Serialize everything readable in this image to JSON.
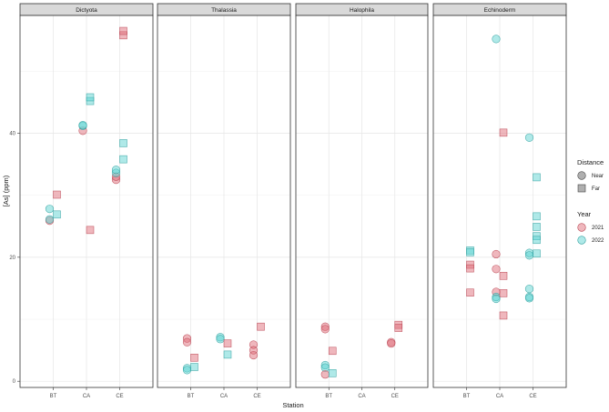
{
  "chart_data": {
    "type": "scatter",
    "xlabel": "Station",
    "ylabel": "[As] (ppm)",
    "categories": [
      "BT",
      "CA",
      "CE"
    ],
    "ylim": [
      -1,
      59
    ],
    "yticks": [
      0,
      20,
      40
    ],
    "grid": true,
    "legend_placement": "right",
    "legends": [
      {
        "title": "Distance",
        "items": [
          {
            "label": "Near",
            "shape": "circle"
          },
          {
            "label": "Far",
            "shape": "square"
          }
        ]
      },
      {
        "title": "Year",
        "items": [
          {
            "label": "2021",
            "color": "#e0707c"
          },
          {
            "label": "2022",
            "color": "#5fd4d2"
          }
        ]
      }
    ],
    "colors": {
      "2021": "#e0707c",
      "2022": "#5fd4d2",
      "2021_stroke": "#b8404d",
      "2022_stroke": "#2a9e9c",
      "near_dark": "#555555"
    },
    "panels": [
      {
        "name": "Dictyota",
        "points": [
          {
            "x": "BT",
            "y": 25.9,
            "year": "2021",
            "dist": "Near"
          },
          {
            "x": "BT",
            "y": 26.1,
            "year": "2022",
            "dist": "Near"
          },
          {
            "x": "BT",
            "y": 27.8,
            "year": "2022",
            "dist": "Near"
          },
          {
            "x": "BT",
            "y": 30.1,
            "year": "2021",
            "dist": "Far"
          },
          {
            "x": "BT",
            "y": 26.9,
            "year": "2022",
            "dist": "Far"
          },
          {
            "x": "CA",
            "y": 40.4,
            "year": "2021",
            "dist": "Near"
          },
          {
            "x": "CA",
            "y": 41.2,
            "year": "2022",
            "dist": "Near"
          },
          {
            "x": "CA",
            "y": 41.3,
            "year": "2022",
            "dist": "Near"
          },
          {
            "x": "CA",
            "y": 45.2,
            "year": "2022",
            "dist": "Far"
          },
          {
            "x": "CA",
            "y": 45.8,
            "year": "2022",
            "dist": "Far"
          },
          {
            "x": "CA",
            "y": 24.4,
            "year": "2021",
            "dist": "Far"
          },
          {
            "x": "CE",
            "y": 32.5,
            "year": "2021",
            "dist": "Near"
          },
          {
            "x": "CE",
            "y": 33.0,
            "year": "2021",
            "dist": "Near"
          },
          {
            "x": "CE",
            "y": 33.6,
            "year": "2022",
            "dist": "Near"
          },
          {
            "x": "CE",
            "y": 34.1,
            "year": "2022",
            "dist": "Near"
          },
          {
            "x": "CE",
            "y": 55.8,
            "year": "2021",
            "dist": "Far"
          },
          {
            "x": "CE",
            "y": 56.5,
            "year": "2021",
            "dist": "Far"
          },
          {
            "x": "CE",
            "y": 38.4,
            "year": "2022",
            "dist": "Far"
          },
          {
            "x": "CE",
            "y": 35.8,
            "year": "2022",
            "dist": "Far"
          }
        ]
      },
      {
        "name": "Thalassia",
        "points": [
          {
            "x": "BT",
            "y": 6.9,
            "year": "2021",
            "dist": "Near"
          },
          {
            "x": "BT",
            "y": 6.3,
            "year": "2021",
            "dist": "Near"
          },
          {
            "x": "BT",
            "y": 2.1,
            "year": "2022",
            "dist": "Near"
          },
          {
            "x": "BT",
            "y": 1.8,
            "year": "2022",
            "dist": "Near"
          },
          {
            "x": "BT",
            "y": 3.8,
            "year": "2021",
            "dist": "Far"
          },
          {
            "x": "BT",
            "y": 2.3,
            "year": "2022",
            "dist": "Far"
          },
          {
            "x": "CA",
            "y": 7.1,
            "year": "2022",
            "dist": "Near"
          },
          {
            "x": "CA",
            "y": 6.8,
            "year": "2022",
            "dist": "Near"
          },
          {
            "x": "CA",
            "y": 6.1,
            "year": "2021",
            "dist": "Far"
          },
          {
            "x": "CA",
            "y": 4.3,
            "year": "2022",
            "dist": "Far"
          },
          {
            "x": "CE",
            "y": 5.9,
            "year": "2021",
            "dist": "Near"
          },
          {
            "x": "CE",
            "y": 5.0,
            "year": "2021",
            "dist": "Near"
          },
          {
            "x": "CE",
            "y": 4.2,
            "year": "2021",
            "dist": "Near"
          },
          {
            "x": "CE",
            "y": 8.8,
            "year": "2021",
            "dist": "Far"
          }
        ]
      },
      {
        "name": "Halophila",
        "points": [
          {
            "x": "BT",
            "y": 8.8,
            "year": "2021",
            "dist": "Near"
          },
          {
            "x": "BT",
            "y": 8.4,
            "year": "2021",
            "dist": "Near"
          },
          {
            "x": "BT",
            "y": 2.6,
            "year": "2022",
            "dist": "Near"
          },
          {
            "x": "BT",
            "y": 2.2,
            "year": "2022",
            "dist": "Near"
          },
          {
            "x": "BT",
            "y": 1.1,
            "year": "2021",
            "dist": "Near"
          },
          {
            "x": "BT",
            "y": 4.9,
            "year": "2021",
            "dist": "Far"
          },
          {
            "x": "BT",
            "y": 1.3,
            "year": "2022",
            "dist": "Far"
          },
          {
            "x": "CE",
            "y": 6.3,
            "year": "2021",
            "dist": "Near"
          },
          {
            "x": "CE",
            "y": 6.1,
            "year": "2021",
            "dist": "Near"
          },
          {
            "x": "CE",
            "y": 9.1,
            "year": "2021",
            "dist": "Far"
          },
          {
            "x": "CE",
            "y": 8.6,
            "year": "2021",
            "dist": "Far"
          }
        ]
      },
      {
        "name": "Echinoderm",
        "points": [
          {
            "x": "BT",
            "y": 21.1,
            "year": "2022",
            "dist": "Far"
          },
          {
            "x": "BT",
            "y": 20.8,
            "year": "2022",
            "dist": "Far"
          },
          {
            "x": "BT",
            "y": 18.8,
            "year": "2021",
            "dist": "Far"
          },
          {
            "x": "BT",
            "y": 18.2,
            "year": "2021",
            "dist": "Far"
          },
          {
            "x": "BT",
            "y": 14.3,
            "year": "2021",
            "dist": "Far"
          },
          {
            "x": "CA",
            "y": 55.2,
            "year": "2022",
            "dist": "Near"
          },
          {
            "x": "CA",
            "y": 20.5,
            "year": "2021",
            "dist": "Near"
          },
          {
            "x": "CA",
            "y": 18.1,
            "year": "2021",
            "dist": "Near"
          },
          {
            "x": "CA",
            "y": 14.4,
            "year": "2021",
            "dist": "Near"
          },
          {
            "x": "CA",
            "y": 13.6,
            "year": "2022",
            "dist": "Near"
          },
          {
            "x": "CA",
            "y": 13.3,
            "year": "2022",
            "dist": "Near"
          },
          {
            "x": "CA",
            "y": 40.1,
            "year": "2021",
            "dist": "Far"
          },
          {
            "x": "CA",
            "y": 17.0,
            "year": "2021",
            "dist": "Far"
          },
          {
            "x": "CA",
            "y": 14.2,
            "year": "2021",
            "dist": "Far"
          },
          {
            "x": "CA",
            "y": 10.6,
            "year": "2021",
            "dist": "Far"
          },
          {
            "x": "CE",
            "y": 39.3,
            "year": "2022",
            "dist": "Near"
          },
          {
            "x": "CE",
            "y": 20.7,
            "year": "2022",
            "dist": "Near"
          },
          {
            "x": "CE",
            "y": 20.3,
            "year": "2022",
            "dist": "Near"
          },
          {
            "x": "CE",
            "y": 14.9,
            "year": "2022",
            "dist": "Near"
          },
          {
            "x": "CE",
            "y": 13.6,
            "year": "2022",
            "dist": "Near"
          },
          {
            "x": "CE",
            "y": 13.4,
            "year": "2022",
            "dist": "Near"
          },
          {
            "x": "CE",
            "y": 32.9,
            "year": "2022",
            "dist": "Far"
          },
          {
            "x": "CE",
            "y": 26.6,
            "year": "2022",
            "dist": "Far"
          },
          {
            "x": "CE",
            "y": 24.9,
            "year": "2022",
            "dist": "Far"
          },
          {
            "x": "CE",
            "y": 23.4,
            "year": "2022",
            "dist": "Far"
          },
          {
            "x": "CE",
            "y": 22.8,
            "year": "2022",
            "dist": "Far"
          },
          {
            "x": "CE",
            "y": 20.6,
            "year": "2022",
            "dist": "Far"
          }
        ]
      }
    ]
  }
}
